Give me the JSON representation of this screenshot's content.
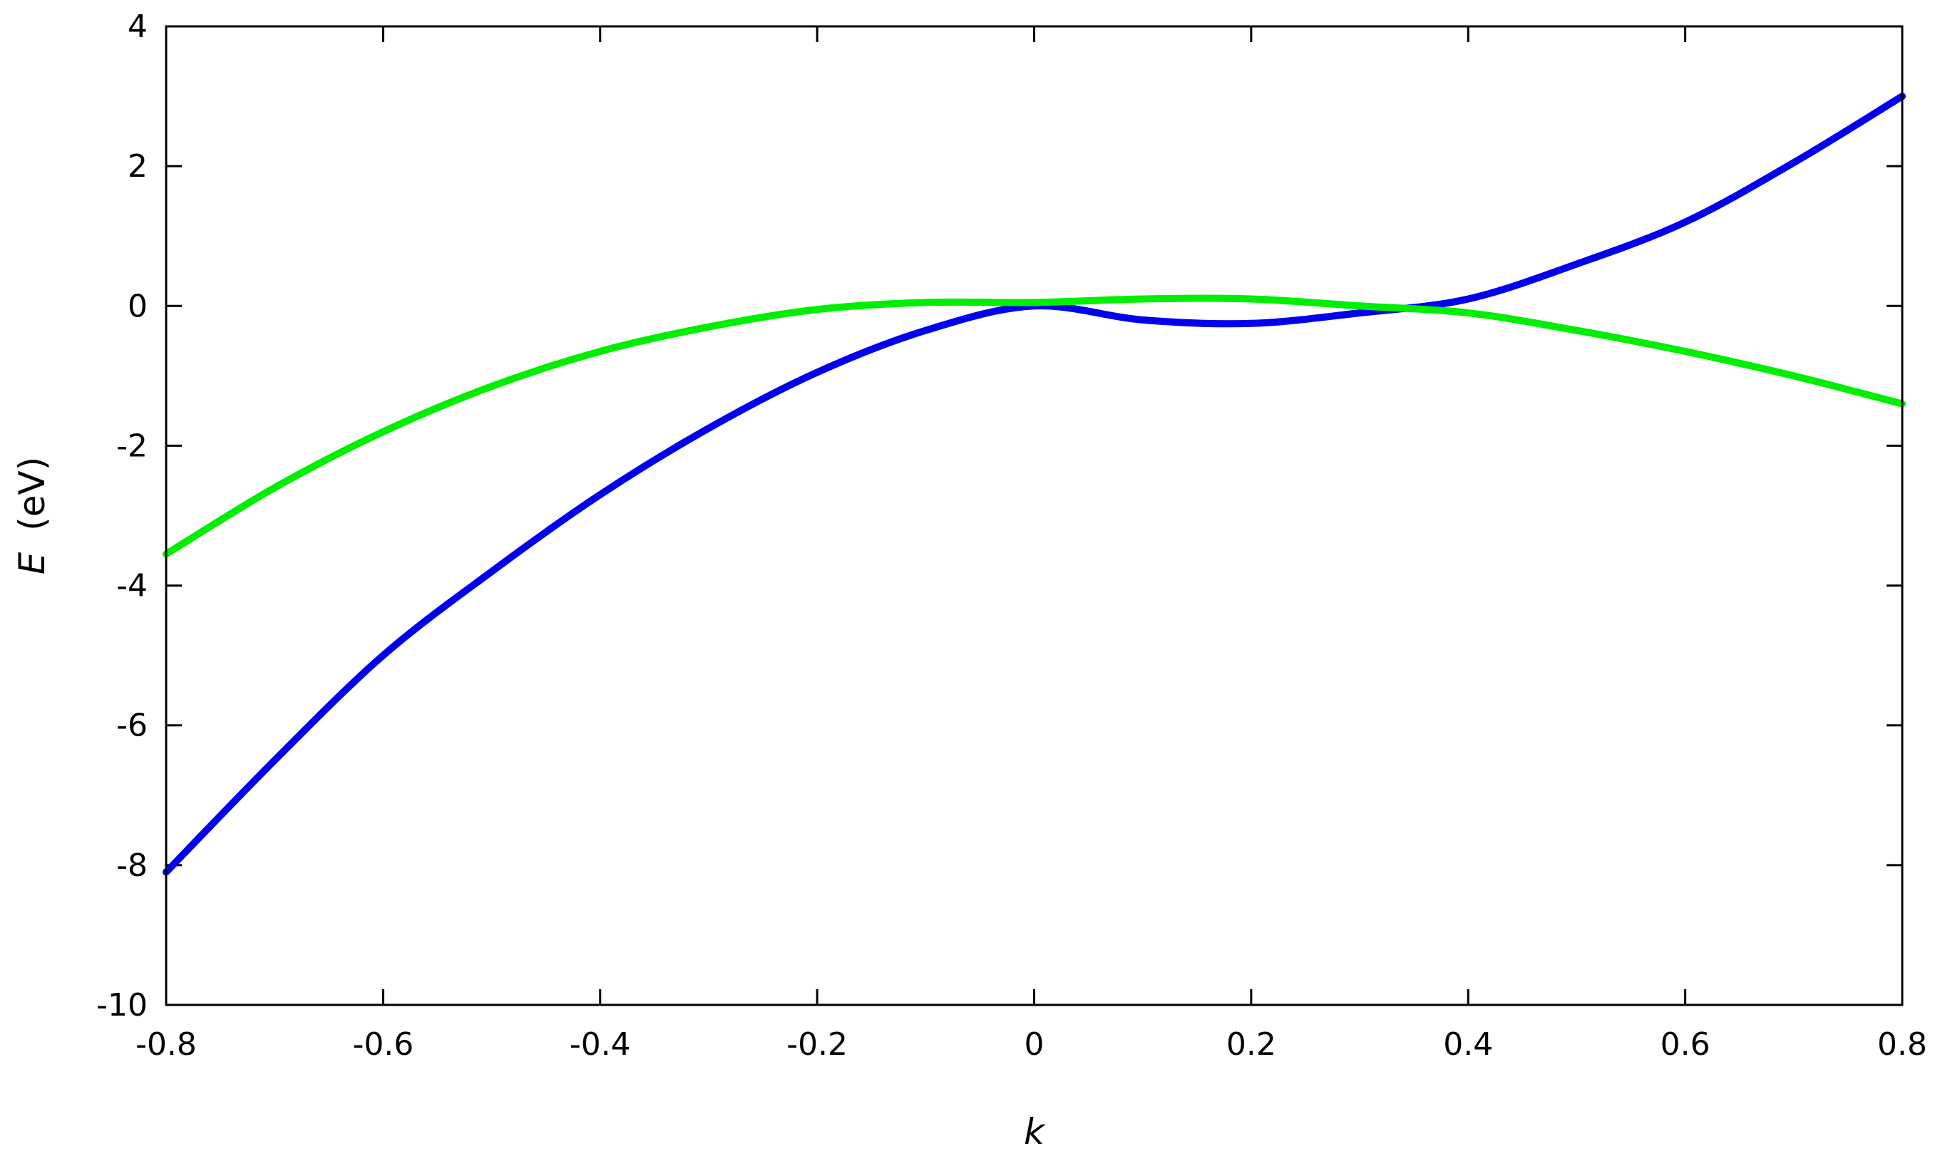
{
  "chart_data": {
    "type": "line",
    "title": "",
    "xlabel": "k",
    "ylabel_symbol": "E",
    "ylabel_unit": "(eV)",
    "xlim": [
      -0.8,
      0.8
    ],
    "ylim": [
      -10,
      4
    ],
    "xticks": [
      -0.8,
      -0.6,
      -0.4,
      -0.2,
      0,
      0.2,
      0.4,
      0.6,
      0.8
    ],
    "xtick_labels": [
      "-0.8",
      "-0.6",
      "-0.4",
      "-0.2",
      "0",
      "0.2",
      "0.4",
      "0.6",
      "0.8"
    ],
    "yticks": [
      -10,
      -8,
      -6,
      -4,
      -2,
      0,
      2,
      4
    ],
    "ytick_labels": [
      "-10",
      "-8",
      "-6",
      "-4",
      "-2",
      "0",
      "2",
      "4"
    ],
    "grid": false,
    "legend": "none",
    "series": [
      {
        "color": "#0000ee",
        "x": [
          -0.8,
          -0.7,
          -0.6,
          -0.5,
          -0.4,
          -0.3,
          -0.2,
          -0.1,
          0.0,
          0.1,
          0.2,
          0.3,
          0.4,
          0.5,
          0.6,
          0.7,
          0.8
        ],
        "y": [
          -8.1,
          -6.5,
          -5.0,
          -3.8,
          -2.7,
          -1.75,
          -0.95,
          -0.35,
          0.0,
          -0.2,
          -0.25,
          -0.1,
          0.1,
          0.6,
          1.2,
          2.05,
          3.0
        ]
      },
      {
        "color": "#00ee00",
        "x": [
          -0.8,
          -0.7,
          -0.6,
          -0.5,
          -0.4,
          -0.3,
          -0.2,
          -0.1,
          0.0,
          0.1,
          0.2,
          0.3,
          0.4,
          0.5,
          0.6,
          0.7,
          0.8
        ],
        "y": [
          -3.55,
          -2.6,
          -1.8,
          -1.15,
          -0.65,
          -0.3,
          -0.05,
          0.05,
          0.05,
          0.1,
          0.1,
          0.0,
          -0.1,
          -0.35,
          -0.65,
          -1.0,
          -1.4
        ]
      }
    ]
  }
}
